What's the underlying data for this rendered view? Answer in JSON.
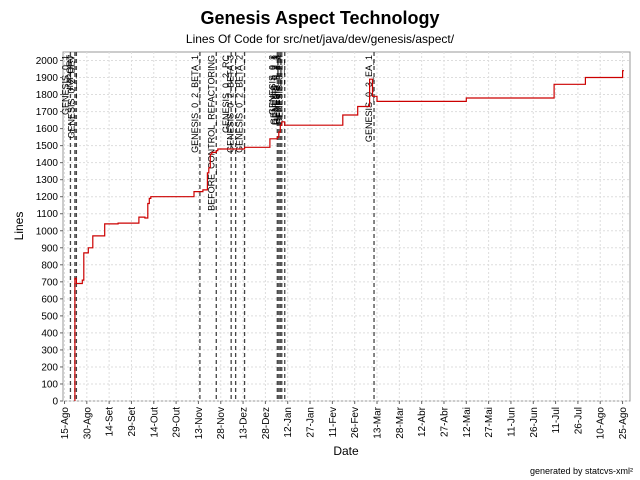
{
  "chart_data": {
    "type": "line",
    "title": "Genesis Aspect Technology",
    "subtitle": "Lines Of Code for src/net/java/dev/genesis/aspect/",
    "xlabel": "Date",
    "ylabel": "Lines",
    "footer": "generated by statcvs-xml²",
    "xlim": [
      "2004-08-14",
      "2005-08-30"
    ],
    "ylim": [
      0,
      2050
    ],
    "yticks": [
      0,
      100,
      200,
      300,
      400,
      500,
      600,
      700,
      800,
      900,
      1000,
      1100,
      1200,
      1300,
      1400,
      1500,
      1600,
      1700,
      1800,
      1900,
      2000
    ],
    "xticks": [
      {
        "date": "2004-08-15",
        "label": "15-Ago"
      },
      {
        "date": "2004-08-30",
        "label": "30-Ago"
      },
      {
        "date": "2004-09-14",
        "label": "14-Set"
      },
      {
        "date": "2004-09-29",
        "label": "29-Set"
      },
      {
        "date": "2004-10-14",
        "label": "14-Out"
      },
      {
        "date": "2004-10-29",
        "label": "29-Out"
      },
      {
        "date": "2004-11-13",
        "label": "13-Nov"
      },
      {
        "date": "2004-11-28",
        "label": "28-Nov"
      },
      {
        "date": "2004-12-13",
        "label": "13-Dez"
      },
      {
        "date": "2004-12-28",
        "label": "28-Dez"
      },
      {
        "date": "2005-01-12",
        "label": "12-Jan"
      },
      {
        "date": "2005-01-27",
        "label": "27-Jan"
      },
      {
        "date": "2005-02-11",
        "label": "11-Fev"
      },
      {
        "date": "2005-02-26",
        "label": "26-Fev"
      },
      {
        "date": "2005-03-13",
        "label": "13-Mar"
      },
      {
        "date": "2005-03-28",
        "label": "28-Mar"
      },
      {
        "date": "2005-04-12",
        "label": "12-Abr"
      },
      {
        "date": "2005-04-27",
        "label": "27-Abr"
      },
      {
        "date": "2005-05-12",
        "label": "12-Mai"
      },
      {
        "date": "2005-05-27",
        "label": "27-Mai"
      },
      {
        "date": "2005-06-11",
        "label": "11-Jun"
      },
      {
        "date": "2005-06-26",
        "label": "26-Jun"
      },
      {
        "date": "2005-07-11",
        "label": "11-Jul"
      },
      {
        "date": "2005-07-26",
        "label": "26-Jul"
      },
      {
        "date": "2005-08-10",
        "label": "10-Ago"
      },
      {
        "date": "2005-08-25",
        "label": "25-Ago"
      }
    ],
    "grid": true,
    "line_color": "#cc0000",
    "tag_color": "#444444",
    "series": [
      {
        "step": true,
        "points": [
          {
            "x": "2004-08-22",
            "y": 0
          },
          {
            "x": "2004-08-22",
            "y": 720
          },
          {
            "x": "2004-08-23",
            "y": 690
          },
          {
            "x": "2004-08-27",
            "y": 710
          },
          {
            "x": "2004-08-28",
            "y": 870
          },
          {
            "x": "2004-08-31",
            "y": 900
          },
          {
            "x": "2004-09-03",
            "y": 970
          },
          {
            "x": "2004-09-11",
            "y": 1040
          },
          {
            "x": "2004-09-20",
            "y": 1045
          },
          {
            "x": "2004-10-04",
            "y": 1080
          },
          {
            "x": "2004-10-08",
            "y": 1075
          },
          {
            "x": "2004-10-10",
            "y": 1160
          },
          {
            "x": "2004-10-11",
            "y": 1190
          },
          {
            "x": "2004-10-12",
            "y": 1200
          },
          {
            "x": "2004-11-10",
            "y": 1230
          },
          {
            "x": "2004-11-16",
            "y": 1240
          },
          {
            "x": "2004-11-19",
            "y": 1340
          },
          {
            "x": "2004-11-20",
            "y": 1370
          },
          {
            "x": "2004-11-21",
            "y": 1450
          },
          {
            "x": "2004-11-22",
            "y": 1460
          },
          {
            "x": "2004-11-25",
            "y": 1470
          },
          {
            "x": "2004-11-26",
            "y": 1480
          },
          {
            "x": "2004-12-14",
            "y": 1490
          },
          {
            "x": "2004-12-31",
            "y": 1540
          },
          {
            "x": "2005-01-05",
            "y": 1550
          },
          {
            "x": "2005-01-06",
            "y": 1580
          },
          {
            "x": "2005-01-07",
            "y": 1620
          },
          {
            "x": "2005-01-08",
            "y": 1640
          },
          {
            "x": "2005-01-10",
            "y": 1620
          },
          {
            "x": "2005-02-18",
            "y": 1680
          },
          {
            "x": "2005-02-28",
            "y": 1730
          },
          {
            "x": "2005-03-08",
            "y": 1890
          },
          {
            "x": "2005-03-10",
            "y": 1790
          },
          {
            "x": "2005-03-13",
            "y": 1760
          },
          {
            "x": "2005-05-12",
            "y": 1780
          },
          {
            "x": "2005-07-10",
            "y": 1860
          },
          {
            "x": "2005-07-31",
            "y": 1900
          },
          {
            "x": "2005-08-25",
            "y": 1940
          },
          {
            "x": "2005-08-26",
            "y": 1940
          }
        ]
      }
    ],
    "tags": [
      {
        "date": "2004-08-19",
        "label": "GENESIS_0_1"
      },
      {
        "date": "2004-08-22",
        "label": "IMPORT"
      },
      {
        "date": "2004-08-23",
        "label": "GENESIS_0_2_DEV"
      },
      {
        "date": "2004-11-14",
        "label": "GENESIS_0_2_BETA_1"
      },
      {
        "date": "2004-11-25",
        "label": "BEFORE_CONTROL_REFACTORING"
      },
      {
        "date": "2004-12-05",
        "label": "GENESIS_0_2_RC"
      },
      {
        "date": "2004-12-08",
        "label": "GENESIS_0_2_BETA_3"
      },
      {
        "date": "2004-12-14",
        "label": "GENESIS_0_2_BETA_2"
      },
      {
        "date": "2005-01-05",
        "label": "GENESIS_0_2"
      },
      {
        "date": "2005-01-06",
        "label": "GENESIS_0_2_1"
      },
      {
        "date": "2005-01-07",
        "label": "GENESIS_0_2_2"
      },
      {
        "date": "2005-01-08",
        "label": "GENESIS_0_2_3"
      },
      {
        "date": "2005-01-10",
        "label": "GENESIS_0_2_4"
      },
      {
        "date": "2005-03-11",
        "label": "GENESIS_0_3_EA_1"
      }
    ]
  }
}
